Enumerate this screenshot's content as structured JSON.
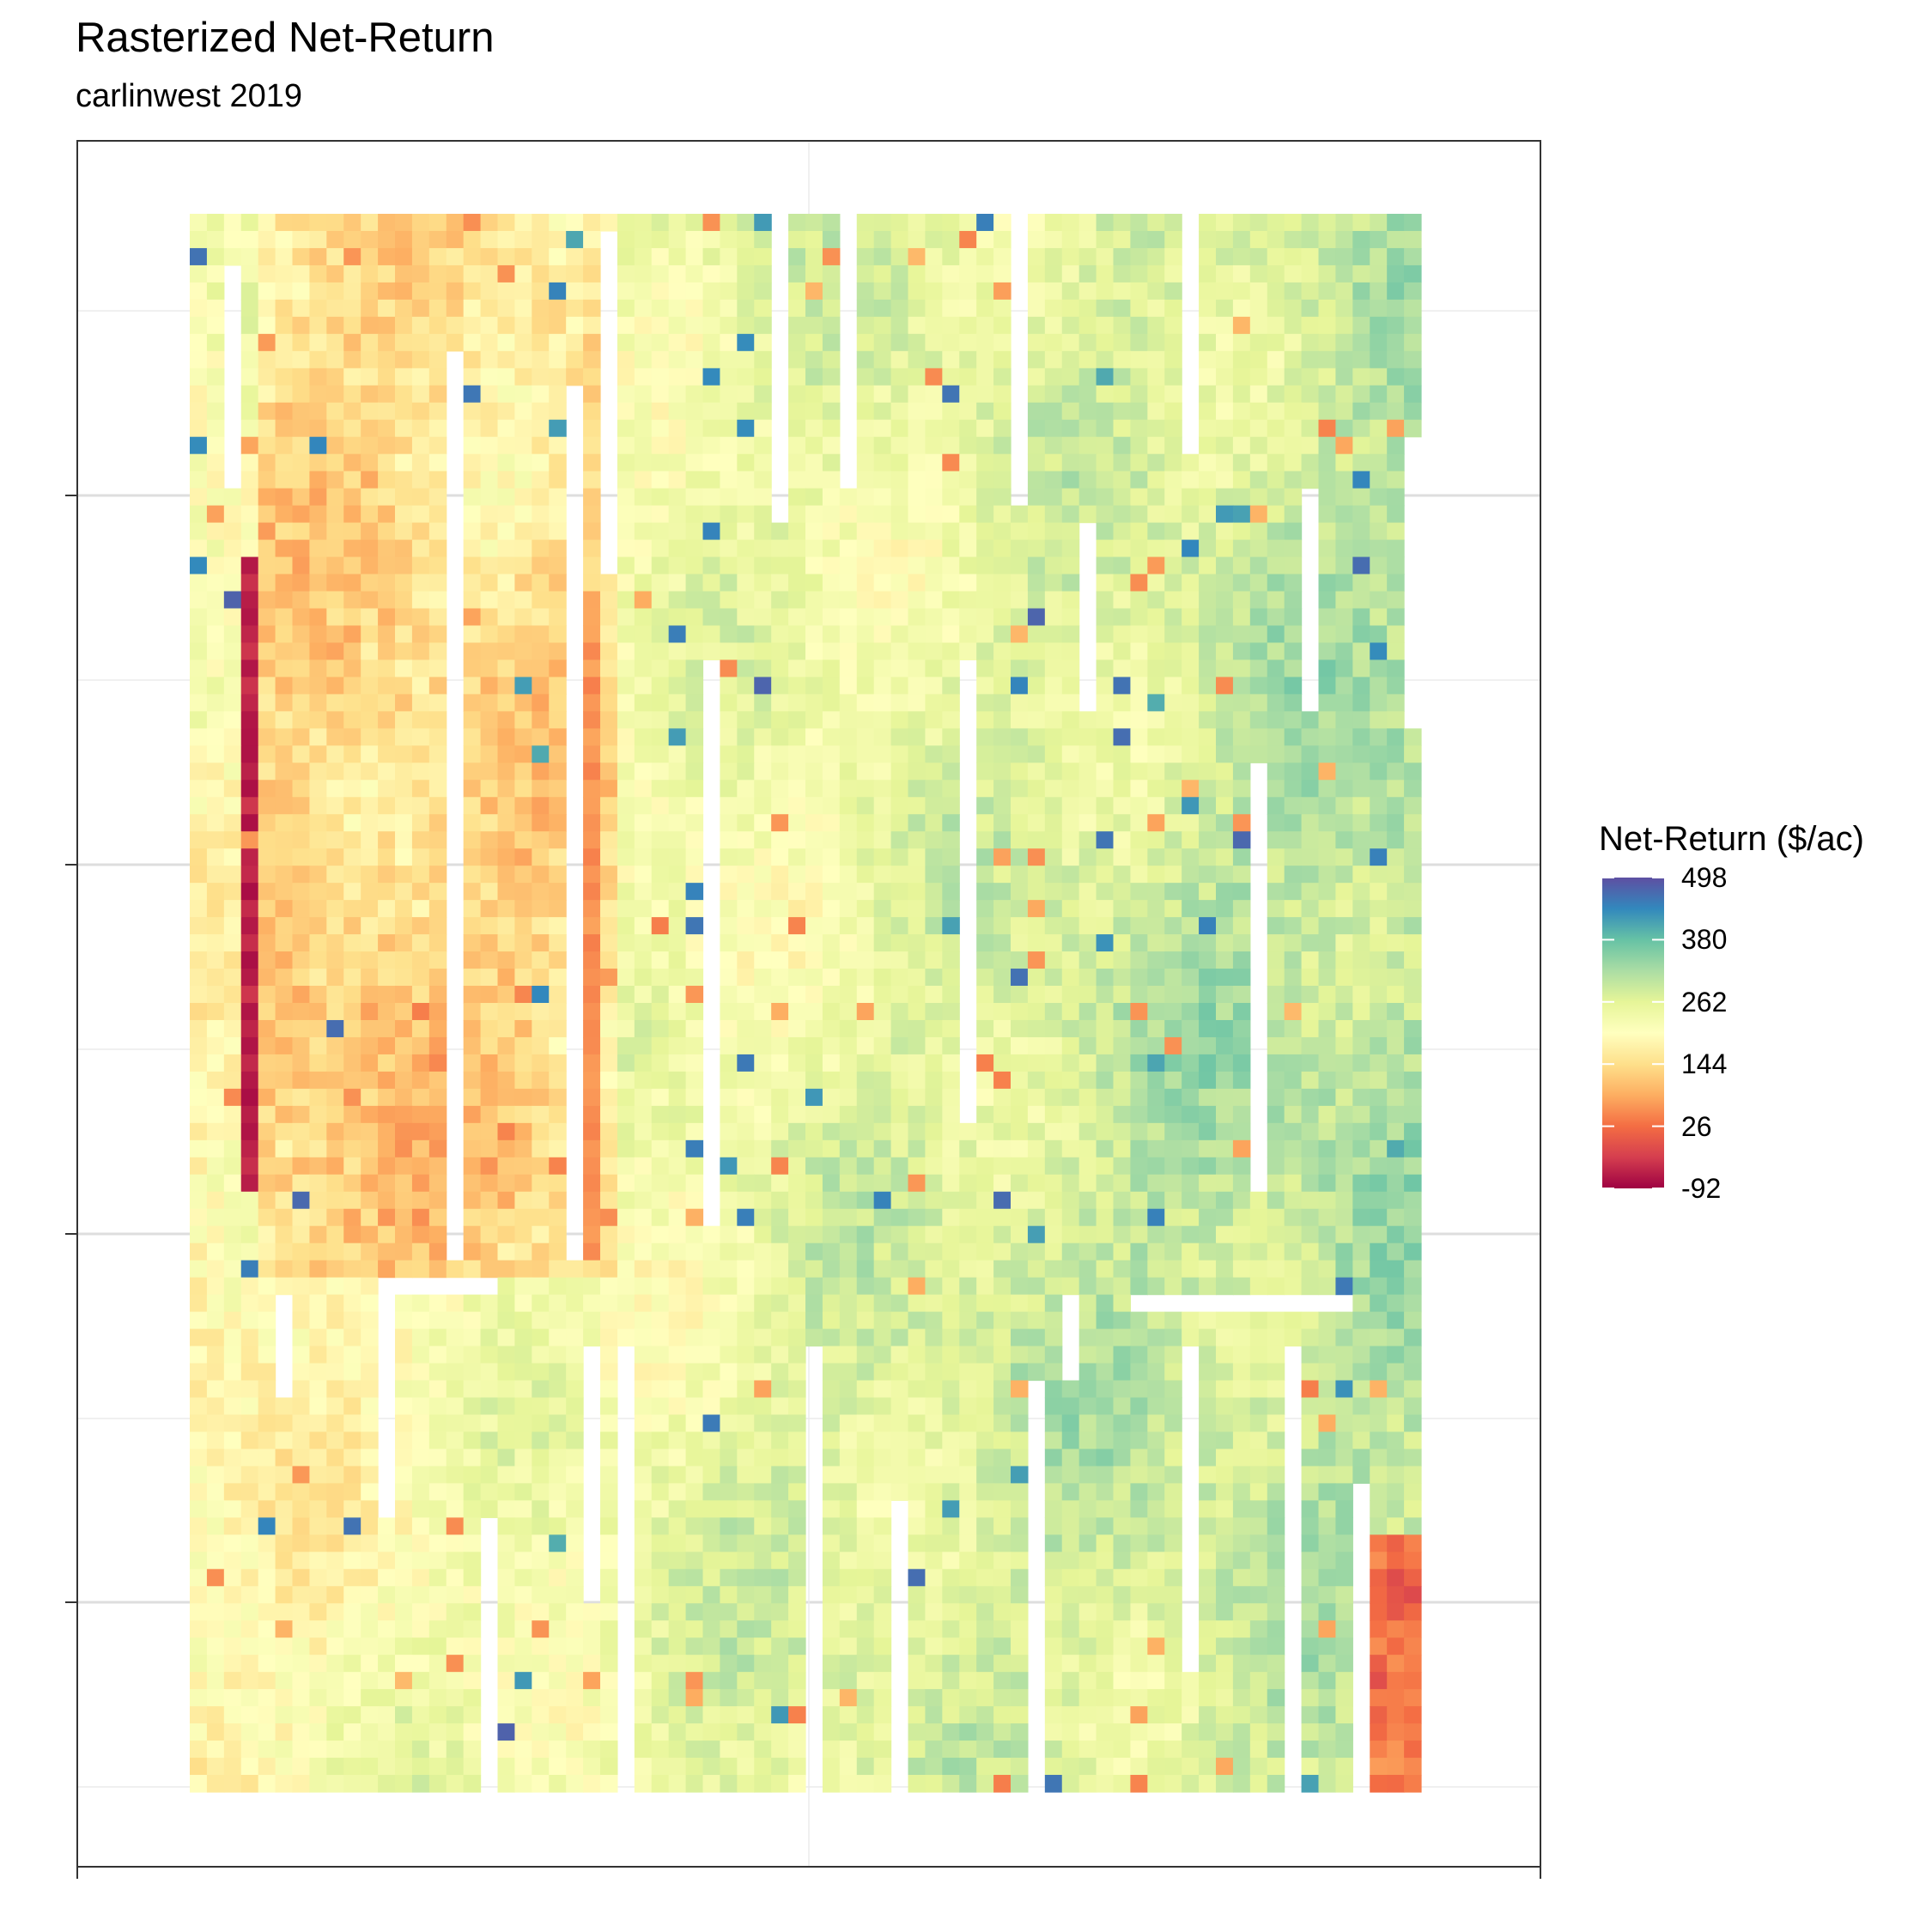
{
  "chart_data": {
    "type": "heatmap",
    "title": "Rasterized Net-Return",
    "subtitle": "carlinwest 2019",
    "xlabel": "",
    "ylabel": "",
    "x_tick_labels": [],
    "y_tick_labels": [],
    "legend": {
      "title": "Net-Return ($/ac)",
      "position": "right",
      "breaks": [
        498,
        380,
        262,
        144,
        26,
        -92
      ],
      "range": [
        -92,
        498
      ],
      "colors": [
        "#9e0142",
        "#d53e4f",
        "#f46d43",
        "#fdae61",
        "#fee08b",
        "#ffffbf",
        "#e6f598",
        "#abdda4",
        "#66c2a5",
        "#3288bd",
        "#5e4fa2"
      ]
    },
    "grid": true,
    "raster": {
      "columns": 72,
      "rows": 92,
      "description_of_pattern": "mostly yellow-green values (~200-320), orange band in upper-left block, dark red column near left edge of upper block, red cluster in lower-right corner, scattered blue cells"
    }
  }
}
